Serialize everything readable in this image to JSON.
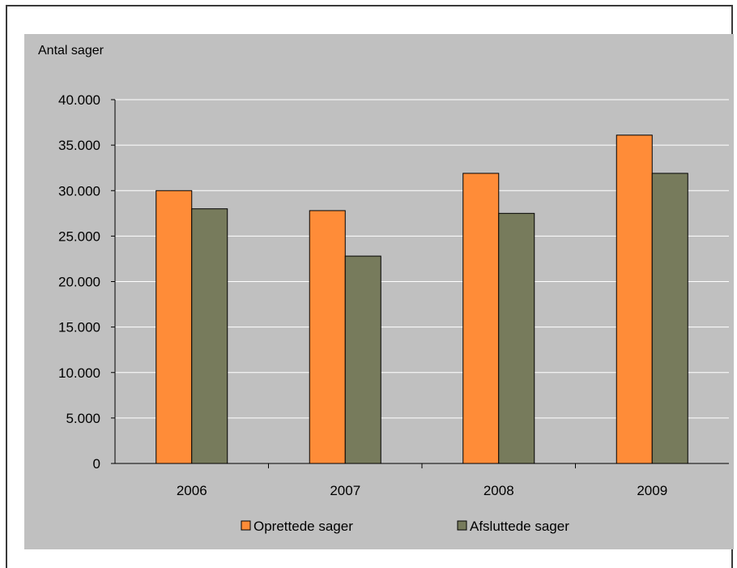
{
  "chart_data": {
    "type": "bar",
    "ylabel": "Antal sager",
    "categories": [
      "2006",
      "2007",
      "2008",
      "2009"
    ],
    "series": [
      {
        "name": "Oprettede sager",
        "color": "#ff8c38",
        "values": [
          30000,
          27800,
          31900,
          36100
        ]
      },
      {
        "name": "Afsluttede sager",
        "color": "#777b5c",
        "values": [
          28000,
          22800,
          27500,
          31900
        ]
      }
    ],
    "ylim": [
      0,
      40000
    ],
    "yticks": [
      0,
      5000,
      10000,
      15000,
      20000,
      25000,
      30000,
      35000,
      40000
    ],
    "ytick_labels": [
      "0",
      "5.000",
      "10.000",
      "15.000",
      "20.000",
      "25.000",
      "30.000",
      "35.000",
      "40.000"
    ],
    "grid": true,
    "legend_position": "bottom",
    "plot_background": "#c0c0c0"
  }
}
